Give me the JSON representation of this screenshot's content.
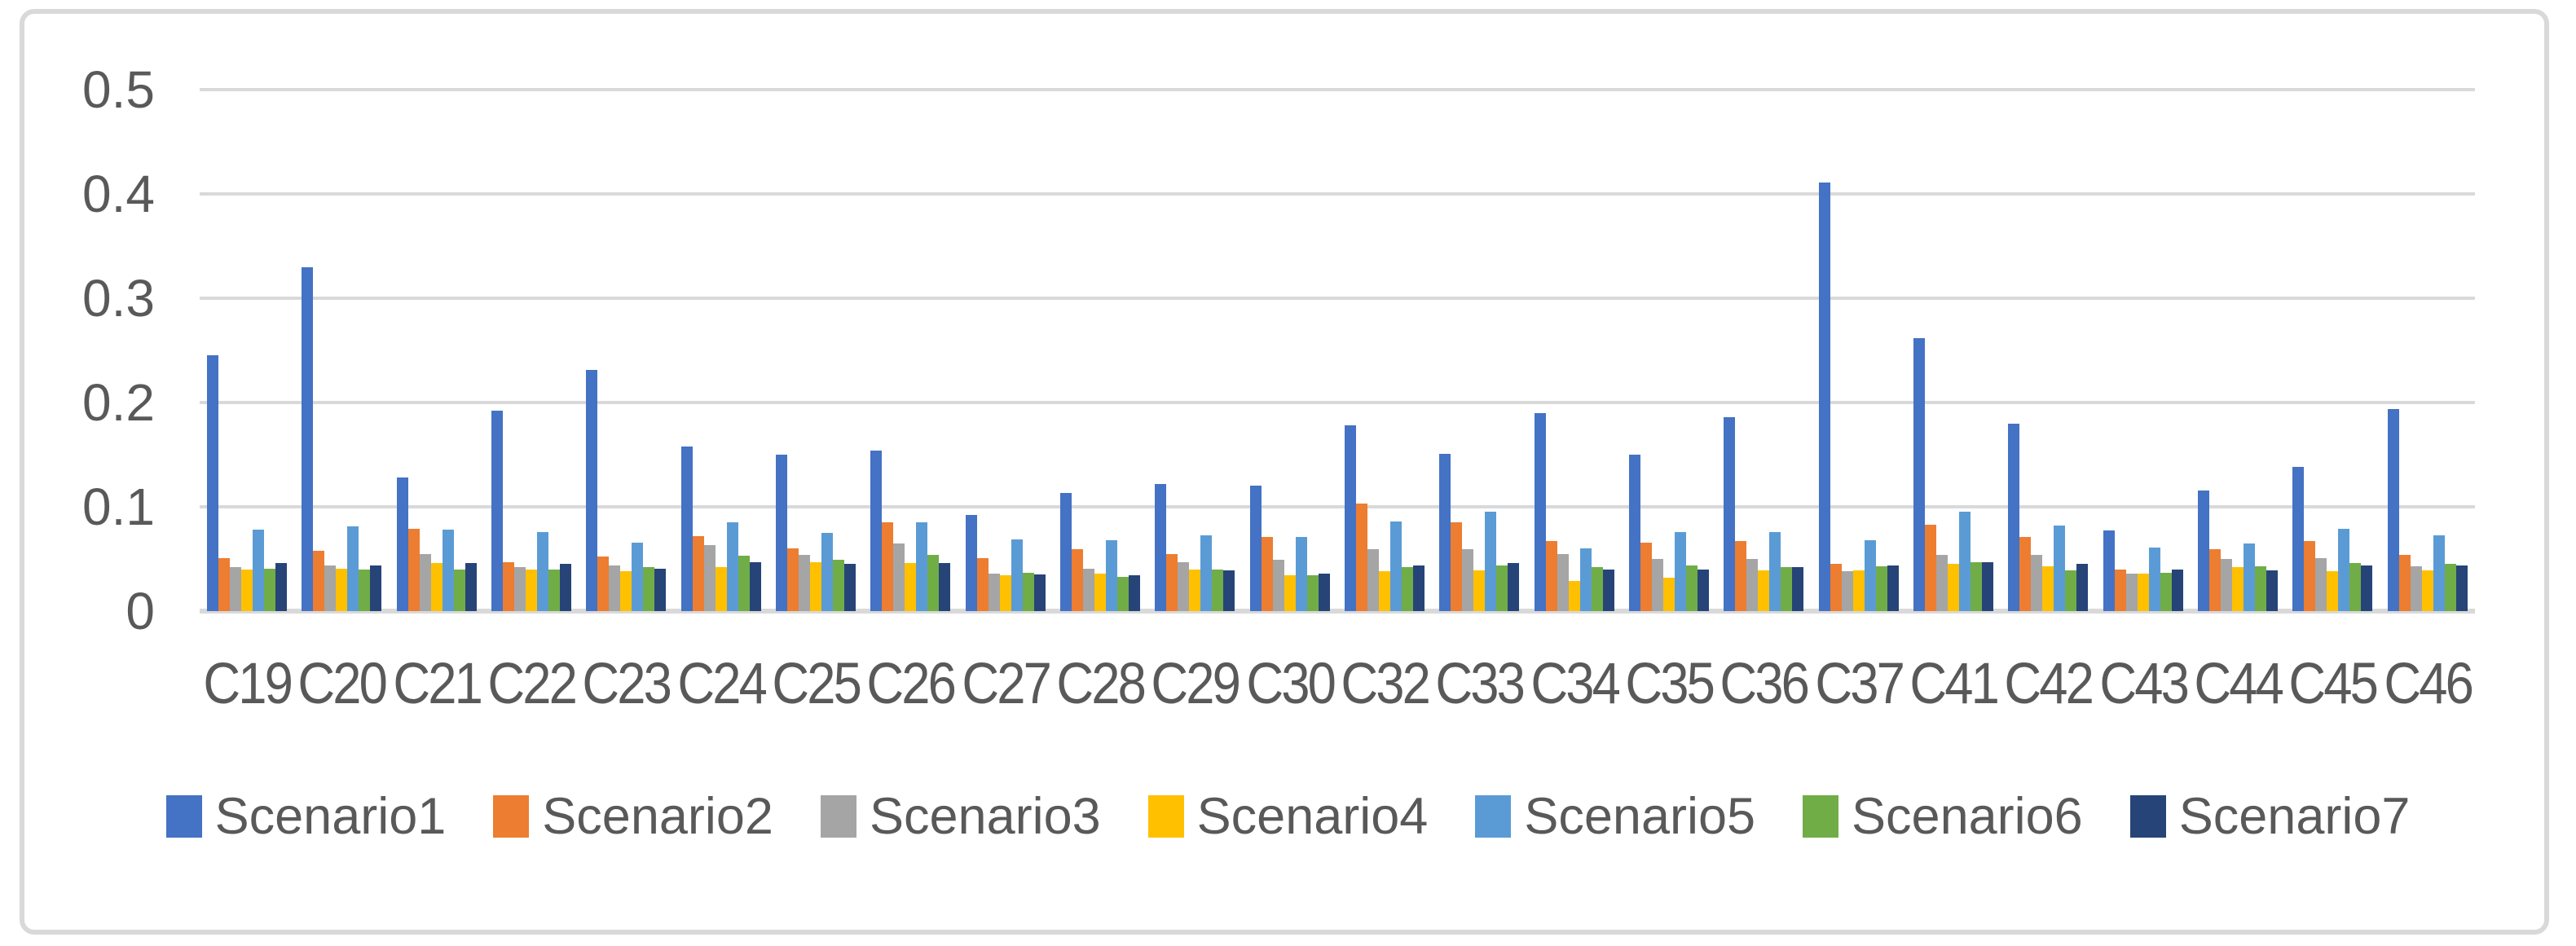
{
  "chart_data": {
    "type": "bar",
    "title": "",
    "xlabel": "",
    "ylabel": "",
    "ylim": [
      0,
      0.5
    ],
    "grid": true,
    "legend_position": "bottom",
    "y_ticks": [
      "0",
      "0.1",
      "0.2",
      "0.3",
      "0.4",
      "0.5"
    ],
    "categories": [
      "C19",
      "C20",
      "C21",
      "C22",
      "C23",
      "C24",
      "C25",
      "C26",
      "C27",
      "C28",
      "C29",
      "C30",
      "C32",
      "C33",
      "C34",
      "C35",
      "C36",
      "C37",
      "C41",
      "C42",
      "C43",
      "C44",
      "C45",
      "C46"
    ],
    "series": [
      {
        "name": "Scenario1",
        "color": "#4472C4",
        "values": [
          0.245,
          0.33,
          0.128,
          0.192,
          0.231,
          0.158,
          0.15,
          0.154,
          0.092,
          0.113,
          0.122,
          0.12,
          0.178,
          0.151,
          0.19,
          0.15,
          0.186,
          0.411,
          0.262,
          0.18,
          0.077,
          0.116,
          0.138,
          0.194
        ]
      },
      {
        "name": "Scenario2",
        "color": "#ED7D31",
        "values": [
          0.051,
          0.058,
          0.079,
          0.047,
          0.052,
          0.072,
          0.06,
          0.085,
          0.051,
          0.059,
          0.055,
          0.071,
          0.103,
          0.085,
          0.067,
          0.066,
          0.067,
          0.045,
          0.083,
          0.071,
          0.04,
          0.059,
          0.067,
          0.054
        ]
      },
      {
        "name": "Scenario3",
        "color": "#A5A5A5",
        "values": [
          0.042,
          0.044,
          0.055,
          0.042,
          0.044,
          0.063,
          0.054,
          0.065,
          0.036,
          0.041,
          0.047,
          0.049,
          0.059,
          0.059,
          0.055,
          0.05,
          0.05,
          0.038,
          0.054,
          0.054,
          0.036,
          0.05,
          0.051,
          0.043
        ]
      },
      {
        "name": "Scenario4",
        "color": "#FFC000",
        "values": [
          0.04,
          0.041,
          0.046,
          0.04,
          0.038,
          0.042,
          0.047,
          0.046,
          0.034,
          0.036,
          0.04,
          0.034,
          0.038,
          0.039,
          0.029,
          0.032,
          0.039,
          0.039,
          0.045,
          0.043,
          0.036,
          0.042,
          0.038,
          0.039
        ]
      },
      {
        "name": "Scenario5",
        "color": "#5B9BD5",
        "values": [
          0.078,
          0.081,
          0.078,
          0.076,
          0.066,
          0.085,
          0.075,
          0.085,
          0.069,
          0.068,
          0.073,
          0.071,
          0.086,
          0.095,
          0.06,
          0.076,
          0.076,
          0.068,
          0.095,
          0.082,
          0.061,
          0.065,
          0.079,
          0.073
        ]
      },
      {
        "name": "Scenario6",
        "color": "#70AD47",
        "values": [
          0.041,
          0.04,
          0.04,
          0.04,
          0.042,
          0.053,
          0.049,
          0.054,
          0.037,
          0.033,
          0.04,
          0.034,
          0.042,
          0.044,
          0.042,
          0.044,
          0.042,
          0.043,
          0.047,
          0.039,
          0.037,
          0.043,
          0.046,
          0.045
        ]
      },
      {
        "name": "Scenario7",
        "color": "#264478",
        "values": [
          0.046,
          0.044,
          0.046,
          0.045,
          0.041,
          0.047,
          0.045,
          0.046,
          0.035,
          0.034,
          0.039,
          0.036,
          0.044,
          0.046,
          0.04,
          0.04,
          0.042,
          0.044,
          0.047,
          0.045,
          0.04,
          0.039,
          0.044,
          0.044
        ]
      }
    ]
  },
  "colors": {
    "grid": "#D9D9D9",
    "frame_border": "#D9D9D9",
    "axis_text": "#595959",
    "background": "#FFFFFF"
  },
  "layout_note": ""
}
